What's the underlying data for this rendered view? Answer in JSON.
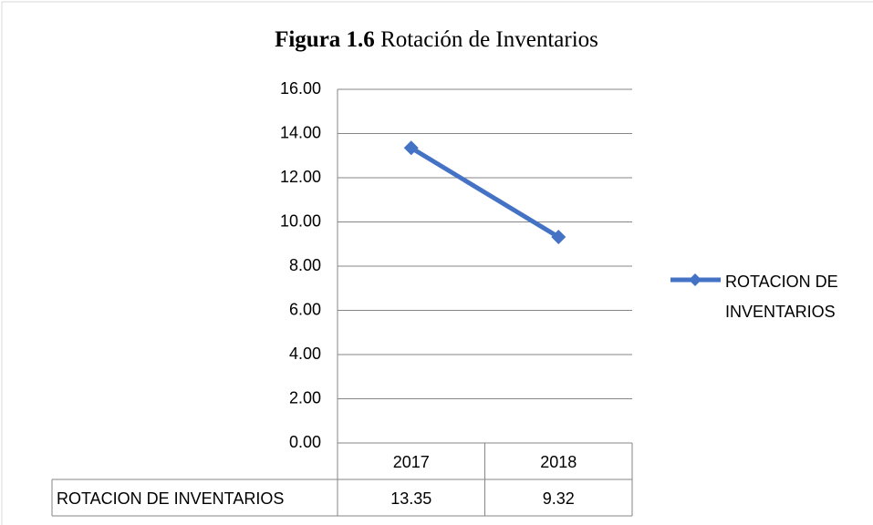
{
  "chart_data": {
    "type": "line",
    "title": {
      "label": "Figura 1.6",
      "text": "Rotación de Inventarios"
    },
    "categories": [
      "2017",
      "2018"
    ],
    "series": [
      {
        "name": "ROTACION DE INVENTARIOS",
        "color": "#4472c4",
        "values": [
          13.35,
          9.32
        ]
      }
    ],
    "ylim": [
      0,
      16
    ],
    "yticks": [
      {
        "value": 0,
        "label": "0.00"
      },
      {
        "value": 2,
        "label": "2.00"
      },
      {
        "value": 4,
        "label": "4.00"
      },
      {
        "value": 6,
        "label": "6.00"
      },
      {
        "value": 8,
        "label": "8.00"
      },
      {
        "value": 10,
        "label": "10.00"
      },
      {
        "value": 12,
        "label": "12.00"
      },
      {
        "value": 14,
        "label": "14.00"
      },
      {
        "value": 16,
        "label": "16.00"
      }
    ],
    "grid": true,
    "legend": "right",
    "data_table": true
  }
}
